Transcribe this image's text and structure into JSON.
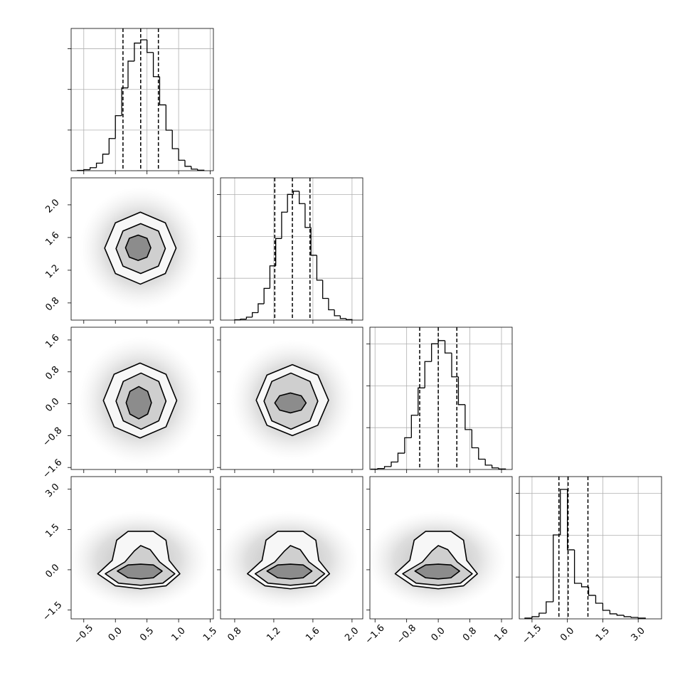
{
  "chart_data": {
    "type": "corner",
    "params": [
      {
        "xlim": [
          -0.7,
          1.55
        ],
        "xticks": [
          {
            "value": -0.5,
            "label": "−0.5"
          },
          {
            "value": 0,
            "label": "0.0"
          },
          0.5,
          {
            "value": 1,
            "label": "1.0"
          },
          1.5
        ],
        "bins": [
          -0.6,
          -0.5,
          -0.4,
          -0.3,
          -0.2,
          -0.1,
          0,
          0.1,
          0.2,
          0.3,
          0.4,
          0.5,
          0.6,
          0.7,
          0.8,
          0.9,
          1.0,
          1.1,
          1.2,
          1.3,
          1.4
        ],
        "counts": [
          4,
          13,
          37,
          93,
          204,
          396,
          677,
          1019,
          1348,
          1570,
          1610,
          1455,
          1157,
          810,
          499,
          271,
          129,
          54,
          20,
          6
        ],
        "hist_ylim": [
          0,
          1750
        ],
        "hist_yticks": [
          500,
          1000,
          1500
        ],
        "quantiles": [
          0.12,
          0.4,
          0.68
        ]
      },
      {
        "xlim": [
          0.655,
          2.11
        ],
        "xticks": [
          0.8,
          1.2,
          1.6,
          {
            "value": 2,
            "label": "2.0"
          }
        ],
        "bins": [
          0.8,
          0.86,
          0.92,
          0.98,
          1.04,
          1.1,
          1.16,
          1.22,
          1.28,
          1.34,
          1.4,
          1.46,
          1.52,
          1.58,
          1.64,
          1.7,
          1.76,
          1.82,
          1.88,
          1.94,
          2.0
        ],
        "counts": [
          4,
          12,
          35,
          89,
          195,
          379,
          648,
          975,
          1290,
          1502,
          1540,
          1392,
          1107,
          775,
          477,
          259,
          123,
          52,
          19,
          6
        ],
        "hist_ylim": [
          0,
          1700
        ],
        "hist_yticks": [
          500,
          1000,
          1500
        ],
        "quantiles": [
          1.21,
          1.39,
          1.57
        ]
      },
      {
        "xlim": [
          -1.73,
          1.87
        ],
        "xticks": [
          {
            "value": -1.6,
            "label": "−1.6"
          },
          {
            "value": -0.8,
            "label": "−0.8"
          },
          {
            "value": 0,
            "label": "0.0"
          },
          0.8,
          1.6
        ],
        "bins": [
          -1.7,
          -1.53,
          -1.36,
          -1.19,
          -1.02,
          -0.85,
          -0.68,
          -0.51,
          -0.34,
          -0.17,
          0,
          0.17,
          0.34,
          0.51,
          0.68,
          0.85,
          1.02,
          1.19,
          1.36,
          1.53,
          1.7
        ],
        "counts": [
          4,
          12,
          35,
          89,
          195,
          379,
          648,
          975,
          1290,
          1502,
          1540,
          1392,
          1107,
          775,
          477,
          259,
          123,
          52,
          19,
          6
        ],
        "hist_ylim": [
          0,
          1700
        ],
        "hist_yticks": [
          500,
          1000,
          1500
        ],
        "quantiles": [
          -0.47,
          0,
          0.47
        ]
      },
      {
        "xlim": [
          -2.04,
          3.99
        ],
        "xticks": [
          {
            "value": -1.5,
            "label": "−1.5"
          },
          {
            "value": 0,
            "label": "0.0"
          },
          1.5,
          {
            "value": 3,
            "label": "3.0"
          }
        ],
        "bins": [
          -1.8,
          -1.5,
          -1.2,
          -0.9,
          -0.6,
          -0.3,
          0,
          0.3,
          0.6,
          0.9,
          1.2,
          1.5,
          1.8,
          2.1,
          2.4,
          2.7,
          3.0,
          3.3
        ],
        "counts": [
          9,
          26,
          68,
          204,
          1003,
          1547,
          825,
          425,
          383,
          281,
          187,
          102,
          60,
          43,
          26,
          17,
          9
        ],
        "hist_ylim": [
          0,
          1700
        ],
        "hist_yticks": [
          500,
          1000,
          1500
        ],
        "quantiles": [
          -0.36,
          0.03,
          0.87
        ]
      }
    ],
    "rows": [
      {
        "ylim": [
          0.59,
          2.33
        ],
        "yticks": [
          0.8,
          1.2,
          1.6,
          {
            "value": 2,
            "label": "2.0"
          }
        ],
        "panels": [
          {
            "contours": [
              {
                "x": [
                  0.96,
                  0.79,
                  0.395,
                  0.0,
                  -0.17,
                  0.0,
                  0.395,
                  0.79
                ],
                "y": [
                  1.47,
                  1.78,
                  1.91,
                  1.78,
                  1.47,
                  1.16,
                  1.03,
                  1.16
                ]
              },
              {
                "x": [
                  0.79,
                  0.68,
                  0.4,
                  0.12,
                  0.01,
                  0.12,
                  0.4,
                  0.68
                ],
                "y": [
                  1.465,
                  1.68,
                  1.77,
                  1.68,
                  1.465,
                  1.25,
                  1.16,
                  1.25
                ]
              },
              {
                "x": [
                  0.56,
                  0.5,
                  0.36,
                  0.22,
                  0.16,
                  0.22,
                  0.36,
                  0.5
                ],
                "y": [
                  1.475,
                  1.59,
                  1.63,
                  1.59,
                  1.475,
                  1.36,
                  1.32,
                  1.36
                ]
              }
            ]
          }
        ]
      },
      {
        "ylim": [
          -1.65,
          1.92
        ],
        "yticks": [
          {
            "value": -1.6,
            "label": "−1.6"
          },
          {
            "value": -0.8,
            "label": "−0.8"
          },
          {
            "value": 0,
            "label": "0.0"
          },
          0.8,
          1.6
        ],
        "panels": [
          {
            "contours": [
              {
                "x": [
                  0.97,
                  0.8,
                  0.39,
                  -0.02,
                  -0.19,
                  -0.02,
                  0.39,
                  0.8
                ],
                "y": [
                  0.08,
                  0.74,
                  1.02,
                  0.74,
                  0.08,
                  -0.58,
                  -0.86,
                  -0.58
                ]
              },
              {
                "x": [
                  0.8,
                  0.685,
                  0.405,
                  0.125,
                  0.01,
                  0.125,
                  0.405,
                  0.685
                ],
                "y": [
                  0.065,
                  0.56,
                  0.77,
                  0.56,
                  0.065,
                  -0.43,
                  -0.64,
                  -0.43
                ]
              },
              {
                "x": [
                  0.57,
                  0.51,
                  0.37,
                  0.23,
                  0.17,
                  0.23,
                  0.37,
                  0.51
                ],
                "y": [
                  0.025,
                  0.31,
                  0.43,
                  0.31,
                  0.025,
                  -0.26,
                  -0.38,
                  -0.26
                ]
              }
            ]
          },
          {
            "contours": [
              {
                "x": [
                  1.76,
                  1.65,
                  1.39,
                  1.13,
                  1.02,
                  1.13,
                  1.39,
                  1.65
                ],
                "y": [
                  0.09,
                  0.72,
                  0.98,
                  0.72,
                  0.09,
                  -0.54,
                  -0.8,
                  -0.54
                ]
              },
              {
                "x": [
                  1.65,
                  1.57,
                  1.375,
                  1.18,
                  1.1,
                  1.18,
                  1.375,
                  1.57
                ],
                "y": [
                  0.065,
                  0.56,
                  0.77,
                  0.56,
                  0.065,
                  -0.43,
                  -0.64,
                  -0.43
                ]
              },
              {
                "x": [
                  1.53,
                  1.48,
                  1.37,
                  1.26,
                  1.21,
                  1.26,
                  1.37,
                  1.48
                ],
                "y": [
                  0.02,
                  0.2,
                  0.27,
                  0.2,
                  0.02,
                  -0.16,
                  -0.23,
                  -0.16
                ]
              }
            ]
          }
        ]
      },
      {
        "ylim": [
          -1.83,
          3.47
        ],
        "yticks": [
          {
            "value": -1.5,
            "label": "−1.5"
          },
          {
            "value": 0,
            "label": "0.0"
          },
          1.5,
          {
            "value": 3,
            "label": "3.0"
          }
        ],
        "panels": [
          {
            "contours": [
              {
                "x": [
                  -0.28,
                  0.0,
                  0.4,
                  0.8,
                  1.02,
                  0.85,
                  0.8,
                  0.6,
                  0.2,
                  0.02,
                  -0.05
                ],
                "y": [
                  -0.15,
                  -0.6,
                  -0.71,
                  -0.6,
                  -0.15,
                  0.35,
                  1.1,
                  1.43,
                  1.43,
                  1.1,
                  0.35
                ]
              },
              {
                "x": [
                  -0.16,
                  0.05,
                  0.4,
                  0.75,
                  0.94,
                  0.7,
                  0.55,
                  0.4,
                  0.3,
                  0.15
                ],
                "y": [
                  -0.15,
                  -0.5,
                  -0.58,
                  -0.5,
                  -0.15,
                  0.29,
                  0.75,
                  0.9,
                  0.7,
                  0.29
                ]
              },
              {
                "x": [
                  0.03,
                  0.2,
                  0.4,
                  0.6,
                  0.74,
                  0.6,
                  0.4,
                  0.2
                ],
                "y": [
                  -0.05,
                  -0.3,
                  -0.34,
                  -0.3,
                  -0.05,
                  0.18,
                  0.21,
                  0.18
                ]
              }
            ]
          },
          {
            "contours": [
              {
                "x": [
                  0.93,
                  1.11,
                  1.37,
                  1.63,
                  1.77,
                  1.66,
                  1.63,
                  1.5,
                  1.24,
                  1.12,
                  1.08
                ],
                "y": [
                  -0.15,
                  -0.6,
                  -0.71,
                  -0.6,
                  -0.15,
                  0.35,
                  1.1,
                  1.43,
                  1.43,
                  1.1,
                  0.35
                ]
              },
              {
                "x": [
                  1.01,
                  1.14,
                  1.37,
                  1.6,
                  1.72,
                  1.56,
                  1.47,
                  1.37,
                  1.31,
                  1.21
                ],
                "y": [
                  -0.15,
                  -0.5,
                  -0.58,
                  -0.5,
                  -0.15,
                  0.29,
                  0.75,
                  0.9,
                  0.7,
                  0.29
                ]
              },
              {
                "x": [
                  1.13,
                  1.24,
                  1.37,
                  1.5,
                  1.59,
                  1.5,
                  1.37,
                  1.24
                ],
                "y": [
                  -0.05,
                  -0.3,
                  -0.34,
                  -0.3,
                  -0.05,
                  0.18,
                  0.21,
                  0.18
                ]
              }
            ]
          },
          {
            "contours": [
              {
                "x": [
                  -1.09,
                  -0.64,
                  0,
                  0.64,
                  0.99,
                  0.72,
                  0.64,
                  0.32,
                  -0.32,
                  -0.61,
                  -0.72
                ],
                "y": [
                  -0.15,
                  -0.6,
                  -0.71,
                  -0.6,
                  -0.15,
                  0.35,
                  1.1,
                  1.43,
                  1.43,
                  1.1,
                  0.35
                ]
              },
              {
                "x": [
                  -0.9,
                  -0.56,
                  0,
                  0.56,
                  0.86,
                  0.48,
                  0.24,
                  0,
                  -0.16,
                  -0.4
                ],
                "y": [
                  -0.15,
                  -0.5,
                  -0.58,
                  -0.5,
                  -0.15,
                  0.29,
                  0.75,
                  0.9,
                  0.7,
                  0.29
                ]
              },
              {
                "x": [
                  -0.59,
                  -0.32,
                  0,
                  0.32,
                  0.54,
                  0.32,
                  0,
                  -0.32
                ],
                "y": [
                  -0.05,
                  -0.3,
                  -0.34,
                  -0.3,
                  -0.05,
                  0.18,
                  0.21,
                  0.18
                ]
              }
            ]
          }
        ]
      }
    ]
  }
}
